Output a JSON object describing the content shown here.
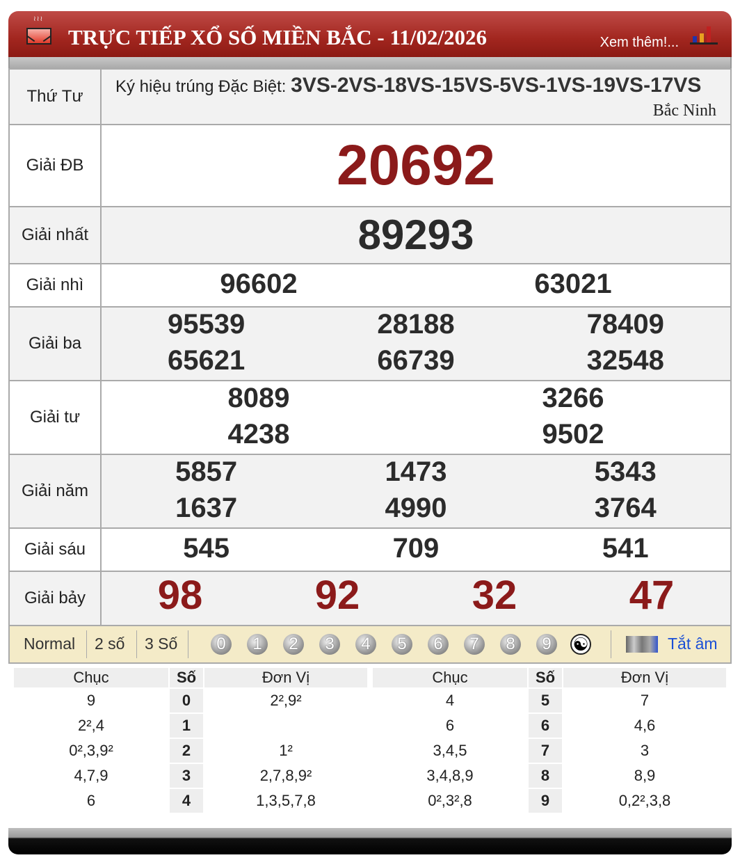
{
  "header": {
    "title": "TRỰC TIẾP XỔ SỐ MIỀN BẮC - 11/02/2026",
    "more_link": "Xem thêm!..."
  },
  "info": {
    "day": "Thứ Tư",
    "symbol_label": "Ký hiệu trúng Đặc Biệt:",
    "symbols": "3VS-2VS-18VS-15VS-5VS-1VS-19VS-17VS",
    "province": "Bắc Ninh"
  },
  "prizes": [
    {
      "label": "Giải ĐB",
      "numbers": [
        "20692"
      ]
    },
    {
      "label": "Giải nhất",
      "numbers": [
        "89293"
      ]
    },
    {
      "label": "Giải nhì",
      "numbers": [
        "96602",
        "63021"
      ]
    },
    {
      "label": "Giải ba",
      "numbers": [
        "95539",
        "28188",
        "78409",
        "65621",
        "66739",
        "32548"
      ]
    },
    {
      "label": "Giải tư",
      "numbers": [
        "8089",
        "3266",
        "4238",
        "9502"
      ]
    },
    {
      "label": "Giải năm",
      "numbers": [
        "5857",
        "1473",
        "5343",
        "1637",
        "4990",
        "3764"
      ]
    },
    {
      "label": "Giải sáu",
      "numbers": [
        "545",
        "709",
        "541"
      ]
    },
    {
      "label": "Giải bảy",
      "numbers": [
        "98",
        "92",
        "32",
        "47"
      ]
    }
  ],
  "colors": {
    "header_red": "#a2261f",
    "special_red": "#8b1a1a",
    "toolbar_bg": "#f4ebc8",
    "link_blue": "#1a4fd6"
  },
  "toolbar": {
    "modes": [
      "Normal",
      "2 số",
      "3 Số"
    ],
    "digits": [
      "0",
      "1",
      "2",
      "3",
      "4",
      "5",
      "6",
      "7",
      "8",
      "9"
    ],
    "mute_label": "Tắt âm"
  },
  "loto": {
    "headers": [
      "Chục",
      "Số",
      "Đơn Vị"
    ],
    "left": [
      [
        "9",
        "0",
        "2²,9²"
      ],
      [
        "2²,4",
        "1",
        ""
      ],
      [
        "0²,3,9²",
        "2",
        "1²"
      ],
      [
        "4,7,9",
        "3",
        "2,7,8,9²"
      ],
      [
        "6",
        "4",
        "1,3,5,7,8"
      ]
    ],
    "right": [
      [
        "4",
        "5",
        "7"
      ],
      [
        "6",
        "6",
        "4,6"
      ],
      [
        "3,4,5",
        "7",
        "3"
      ],
      [
        "3,4,8,9",
        "8",
        "8,9"
      ],
      [
        "0²,3²,8",
        "9",
        "0,2²,3,8"
      ]
    ]
  }
}
